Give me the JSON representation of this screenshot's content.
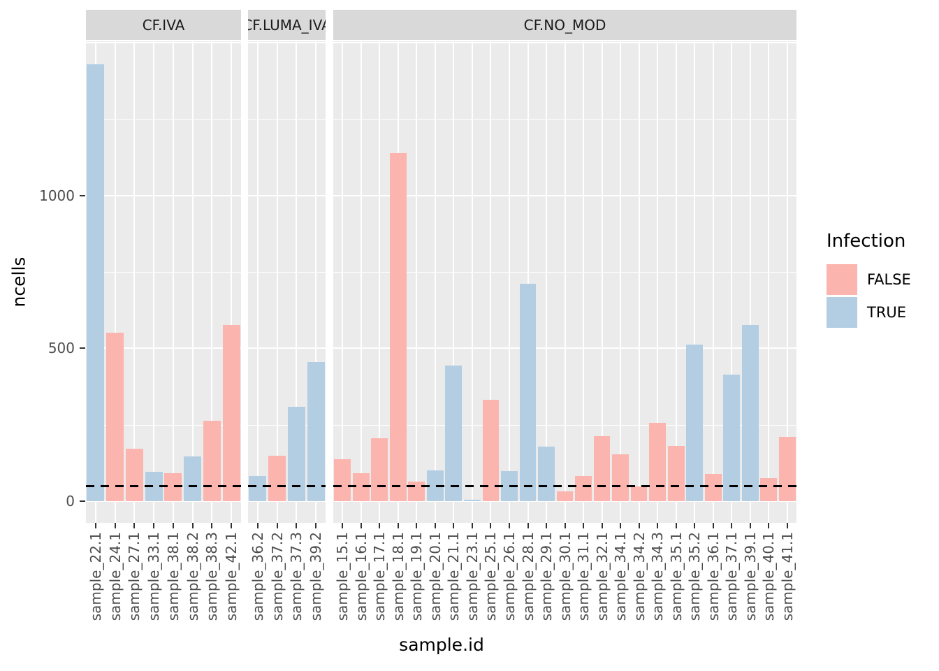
{
  "chart_data": {
    "type": "bar",
    "title": "",
    "xlabel": "sample.id",
    "ylabel": "ncells",
    "y_ticks": [
      "0",
      "500",
      "1000"
    ],
    "y_tick_values": [
      0,
      500,
      1000
    ],
    "ylim": [
      -71,
      1504
    ],
    "grid": {
      "major": [
        0,
        500,
        1000,
        1500
      ],
      "minor": [
        250,
        750,
        1250
      ],
      "on": true
    },
    "hline": {
      "y": 50,
      "style": "dashed",
      "color": "#000000"
    },
    "legend": {
      "title": "Infection",
      "position": "right",
      "entries": [
        {
          "label": "FALSE",
          "color": "#FBB4AE"
        },
        {
          "label": "TRUE",
          "color": "#B3CDE3"
        }
      ]
    },
    "facets": [
      {
        "label": "CF.IVA",
        "bars": [
          {
            "id": "sample_22.1",
            "infection": "TRUE",
            "ncells": 1430
          },
          {
            "id": "sample_24.1",
            "infection": "FALSE",
            "ncells": 552
          },
          {
            "id": "sample_27.1",
            "infection": "FALSE",
            "ncells": 172
          },
          {
            "id": "sample_33.1",
            "infection": "TRUE",
            "ncells": 97
          },
          {
            "id": "sample_38.1",
            "infection": "FALSE",
            "ncells": 91
          },
          {
            "id": "sample_38.2",
            "infection": "TRUE",
            "ncells": 146
          },
          {
            "id": "sample_38.3",
            "infection": "FALSE",
            "ncells": 262
          },
          {
            "id": "sample_42.1",
            "infection": "FALSE",
            "ncells": 576
          }
        ]
      },
      {
        "label": "CF.LUMA_IVA",
        "bars": [
          {
            "id": "sample_36.2",
            "infection": "TRUE",
            "ncells": 82
          },
          {
            "id": "sample_37.2",
            "infection": "FALSE",
            "ncells": 148
          },
          {
            "id": "sample_37.3",
            "infection": "TRUE",
            "ncells": 309
          },
          {
            "id": "sample_39.2",
            "infection": "TRUE",
            "ncells": 455
          }
        ]
      },
      {
        "label": "CF.NO_MOD",
        "bars": [
          {
            "id": "sample_15.1",
            "infection": "FALSE",
            "ncells": 137
          },
          {
            "id": "sample_16.1",
            "infection": "FALSE",
            "ncells": 92
          },
          {
            "id": "sample_17.1",
            "infection": "FALSE",
            "ncells": 207
          },
          {
            "id": "sample_18.1",
            "infection": "FALSE",
            "ncells": 1139
          },
          {
            "id": "sample_19.1",
            "infection": "FALSE",
            "ncells": 64
          },
          {
            "id": "sample_20.1",
            "infection": "TRUE",
            "ncells": 101
          },
          {
            "id": "sample_21.1",
            "infection": "TRUE",
            "ncells": 444
          },
          {
            "id": "sample_23.1",
            "infection": "TRUE",
            "ncells": 4
          },
          {
            "id": "sample_25.1",
            "infection": "FALSE",
            "ncells": 332
          },
          {
            "id": "sample_26.1",
            "infection": "TRUE",
            "ncells": 98
          },
          {
            "id": "sample_28.1",
            "infection": "TRUE",
            "ncells": 711
          },
          {
            "id": "sample_29.1",
            "infection": "TRUE",
            "ncells": 178
          },
          {
            "id": "sample_30.1",
            "infection": "FALSE",
            "ncells": 32
          },
          {
            "id": "sample_31.1",
            "infection": "FALSE",
            "ncells": 82
          },
          {
            "id": "sample_32.1",
            "infection": "FALSE",
            "ncells": 213
          },
          {
            "id": "sample_34.1",
            "infection": "FALSE",
            "ncells": 153
          },
          {
            "id": "sample_34.2",
            "infection": "FALSE",
            "ncells": 48
          },
          {
            "id": "sample_34.3",
            "infection": "FALSE",
            "ncells": 256
          },
          {
            "id": "sample_35.1",
            "infection": "FALSE",
            "ncells": 181
          },
          {
            "id": "sample_35.2",
            "infection": "TRUE",
            "ncells": 512
          },
          {
            "id": "sample_36.1",
            "infection": "FALSE",
            "ncells": 89
          },
          {
            "id": "sample_37.1",
            "infection": "TRUE",
            "ncells": 414
          },
          {
            "id": "sample_39.1",
            "infection": "TRUE",
            "ncells": 577
          },
          {
            "id": "sample_40.1",
            "infection": "FALSE",
            "ncells": 75
          },
          {
            "id": "sample_41.1",
            "infection": "FALSE",
            "ncells": 211
          }
        ]
      }
    ],
    "colors": {
      "FALSE": "#FBB4AE",
      "TRUE": "#B3CDE3",
      "panel_bg": "#EBEBEB",
      "strip_bg": "#D9D9D9",
      "grid": "#FFFFFF",
      "tick_text": "#4D4D4D",
      "hline": "#000000"
    }
  }
}
